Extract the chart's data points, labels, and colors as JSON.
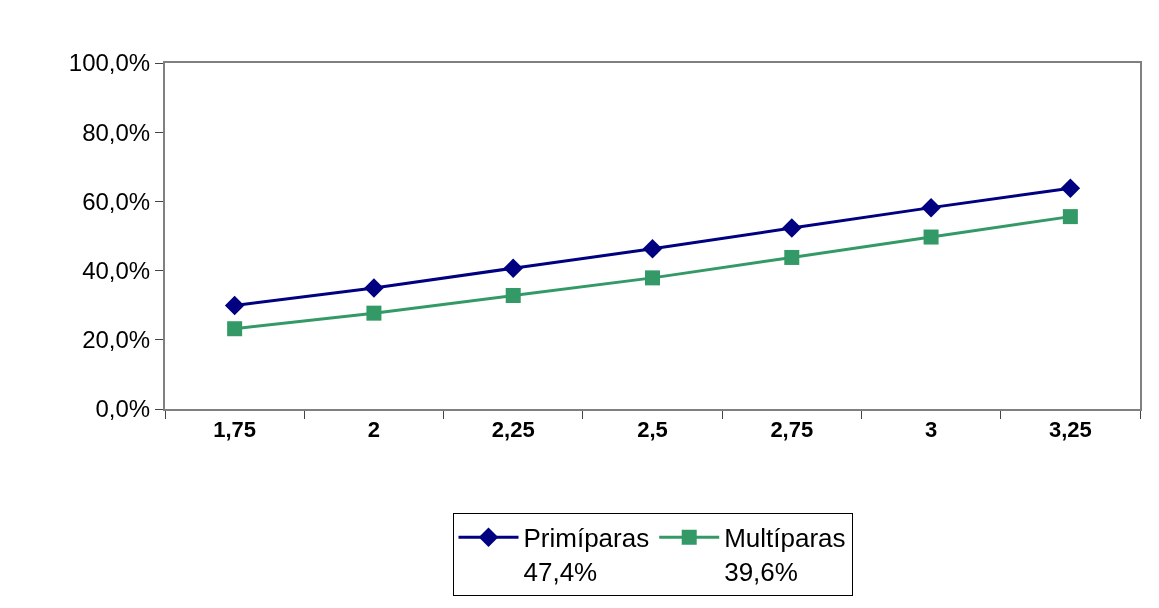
{
  "chart_data": {
    "type": "line",
    "categories": [
      "1,75",
      "2",
      "2,25",
      "2,5",
      "2,75",
      "3",
      "3,25"
    ],
    "series": [
      {
        "name": "Primíparas\n47,4%",
        "color": "#000080",
        "marker": "diamond",
        "values": [
          29.9,
          35.0,
          40.7,
          46.3,
          52.3,
          58.2,
          63.8
        ]
      },
      {
        "name": "Multíparas\n39,6%",
        "color": "#339966",
        "marker": "square",
        "values": [
          23.2,
          27.7,
          32.8,
          37.9,
          43.8,
          49.7,
          55.6
        ]
      }
    ],
    "ylim": [
      0,
      100
    ],
    "yticks": [
      {
        "value": 0,
        "label": "0,0%"
      },
      {
        "value": 20,
        "label": "20,0%"
      },
      {
        "value": 40,
        "label": "40,0%"
      },
      {
        "value": 60,
        "label": "60,0%"
      },
      {
        "value": 80,
        "label": "80,0%"
      },
      {
        "value": 100,
        "label": "100,0%"
      }
    ],
    "legend": "bottom",
    "line_style": "solid"
  }
}
